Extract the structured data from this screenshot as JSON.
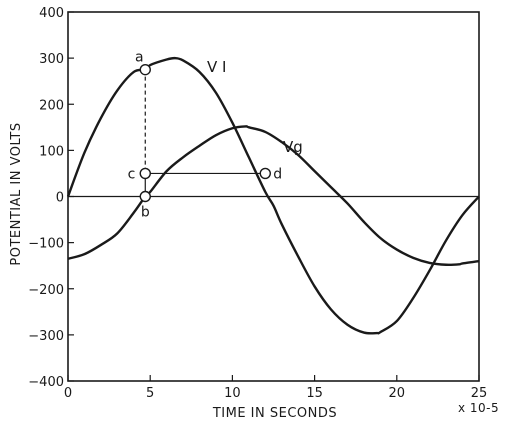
{
  "chart_data": {
    "type": "line",
    "xlabel": "TIME IN SECONDS",
    "xlabel_multiplier": "x 10-5",
    "ylabel": "POTENTIAL IN VOLTS",
    "xlim": [
      0,
      25
    ],
    "ylim": [
      -400,
      400
    ],
    "x_ticks": [
      0,
      5,
      10,
      15,
      20,
      25
    ],
    "y_ticks": [
      400,
      300,
      200,
      100,
      0,
      -100,
      -200,
      -300,
      -400
    ],
    "grid": false,
    "series": [
      {
        "name": "V1",
        "label_text": "V I",
        "x": [
          0,
          1,
          2,
          3,
          4,
          4.7,
          5,
          6,
          6.5,
          7,
          8,
          9,
          10,
          11,
          12,
          12.5,
          13,
          14,
          15,
          16,
          17,
          18,
          18.8,
          19,
          20,
          21,
          22,
          23,
          24,
          25
        ],
        "y": [
          0,
          95,
          170,
          230,
          270,
          275,
          285,
          297,
          300,
          295,
          270,
          225,
          160,
          85,
          10,
          -20,
          -60,
          -130,
          -195,
          -245,
          -278,
          -295,
          -296,
          -294,
          -270,
          -220,
          -160,
          -95,
          -40,
          0
        ]
      },
      {
        "name": "Vg",
        "label_text": "Vg",
        "x": [
          0,
          1,
          2,
          3,
          4,
          4.7,
          5,
          6,
          7,
          8,
          9,
          10,
          10.8,
          11,
          12,
          13,
          14,
          15,
          16,
          17,
          18,
          19,
          20,
          21,
          22,
          23,
          23.8,
          24,
          25
        ],
        "y": [
          -135,
          -125,
          -105,
          -80,
          -35,
          0,
          10,
          55,
          85,
          110,
          133,
          148,
          152,
          150,
          140,
          118,
          90,
          55,
          20,
          -15,
          -55,
          -90,
          -115,
          -133,
          -144,
          -148,
          -147,
          -145,
          -140
        ]
      }
    ],
    "points": [
      {
        "label": "a",
        "x": 4.7,
        "y": 275
      },
      {
        "label": "b",
        "x": 4.7,
        "y": 0
      },
      {
        "label": "c",
        "x": 4.7,
        "y": 50
      },
      {
        "label": "d",
        "x": 12,
        "y": 50
      }
    ]
  }
}
